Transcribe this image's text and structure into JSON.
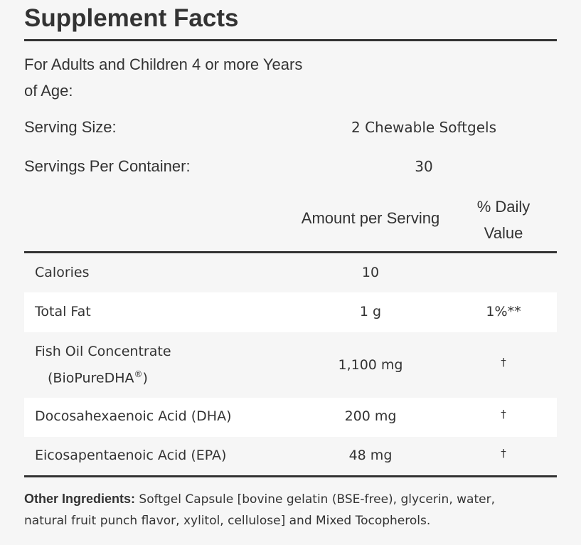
{
  "title": "Supplement Facts",
  "audience": "For Adults and Children 4 or more Years of Age:",
  "serving_size": {
    "label": "Serving Size:",
    "value": "2 Chewable Softgels"
  },
  "servings_per_container": {
    "label": "Servings Per Container:",
    "value": "30"
  },
  "table": {
    "header": {
      "amount": "Amount per Serving",
      "daily_value": "% Daily Value"
    },
    "rows": [
      {
        "name": "Calories",
        "amount": "10"
      },
      {
        "name": "Total Fat",
        "amount": "1 g",
        "daily_value": "1%**"
      },
      {
        "name": "Fish Oil Concentrate",
        "sub": "(BioPureDHA",
        "sup": "®",
        "sub_end": ")",
        "amount": "1,100 mg",
        "daily_value": "†"
      },
      {
        "name": "Docosahexaenoic Acid (DHA)",
        "amount": "200 mg",
        "daily_value": "†"
      },
      {
        "name": "Eicosapentaenoic Acid (EPA)",
        "amount": "48 mg",
        "daily_value": "†"
      }
    ]
  },
  "other_ingredients": {
    "label": "Other Ingredients:",
    "text": "Softgel Capsule [bovine gelatin (BSE-free), glycerin, water, natural fruit punch flavor, xylitol, cellulose] and Mixed Tocopherols."
  }
}
